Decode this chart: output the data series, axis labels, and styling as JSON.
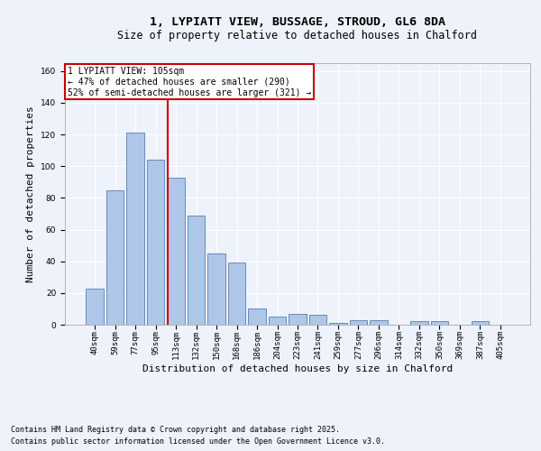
{
  "title1": "1, LYPIATT VIEW, BUSSAGE, STROUD, GL6 8DA",
  "title2": "Size of property relative to detached houses in Chalford",
  "xlabel": "Distribution of detached houses by size in Chalford",
  "ylabel": "Number of detached properties",
  "categories": [
    "40sqm",
    "59sqm",
    "77sqm",
    "95sqm",
    "113sqm",
    "132sqm",
    "150sqm",
    "168sqm",
    "186sqm",
    "204sqm",
    "223sqm",
    "241sqm",
    "259sqm",
    "277sqm",
    "296sqm",
    "314sqm",
    "332sqm",
    "350sqm",
    "369sqm",
    "387sqm",
    "405sqm"
  ],
  "values": [
    23,
    85,
    121,
    104,
    93,
    69,
    45,
    39,
    10,
    5,
    7,
    6,
    1,
    3,
    3,
    0,
    2,
    2,
    0,
    2,
    0
  ],
  "bar_color": "#aec6e8",
  "bar_edge_color": "#5580b0",
  "vline_color": "#cc0000",
  "annotation_title": "1 LYPIATT VIEW: 105sqm",
  "annotation_line1": "← 47% of detached houses are smaller (290)",
  "annotation_line2": "52% of semi-detached houses are larger (321) →",
  "annotation_box_color": "#ffffff",
  "annotation_box_edge": "#cc0000",
  "ylim": [
    0,
    165
  ],
  "yticks": [
    0,
    20,
    40,
    60,
    80,
    100,
    120,
    140,
    160
  ],
  "footnote1": "Contains HM Land Registry data © Crown copyright and database right 2025.",
  "footnote2": "Contains public sector information licensed under the Open Government Licence v3.0.",
  "background_color": "#eef2fb",
  "grid_color": "#ffffff",
  "title_fontsize": 9.5,
  "subtitle_fontsize": 8.5,
  "axis_label_fontsize": 8,
  "tick_fontsize": 6.5,
  "footnote_fontsize": 6,
  "annotation_fontsize": 7
}
